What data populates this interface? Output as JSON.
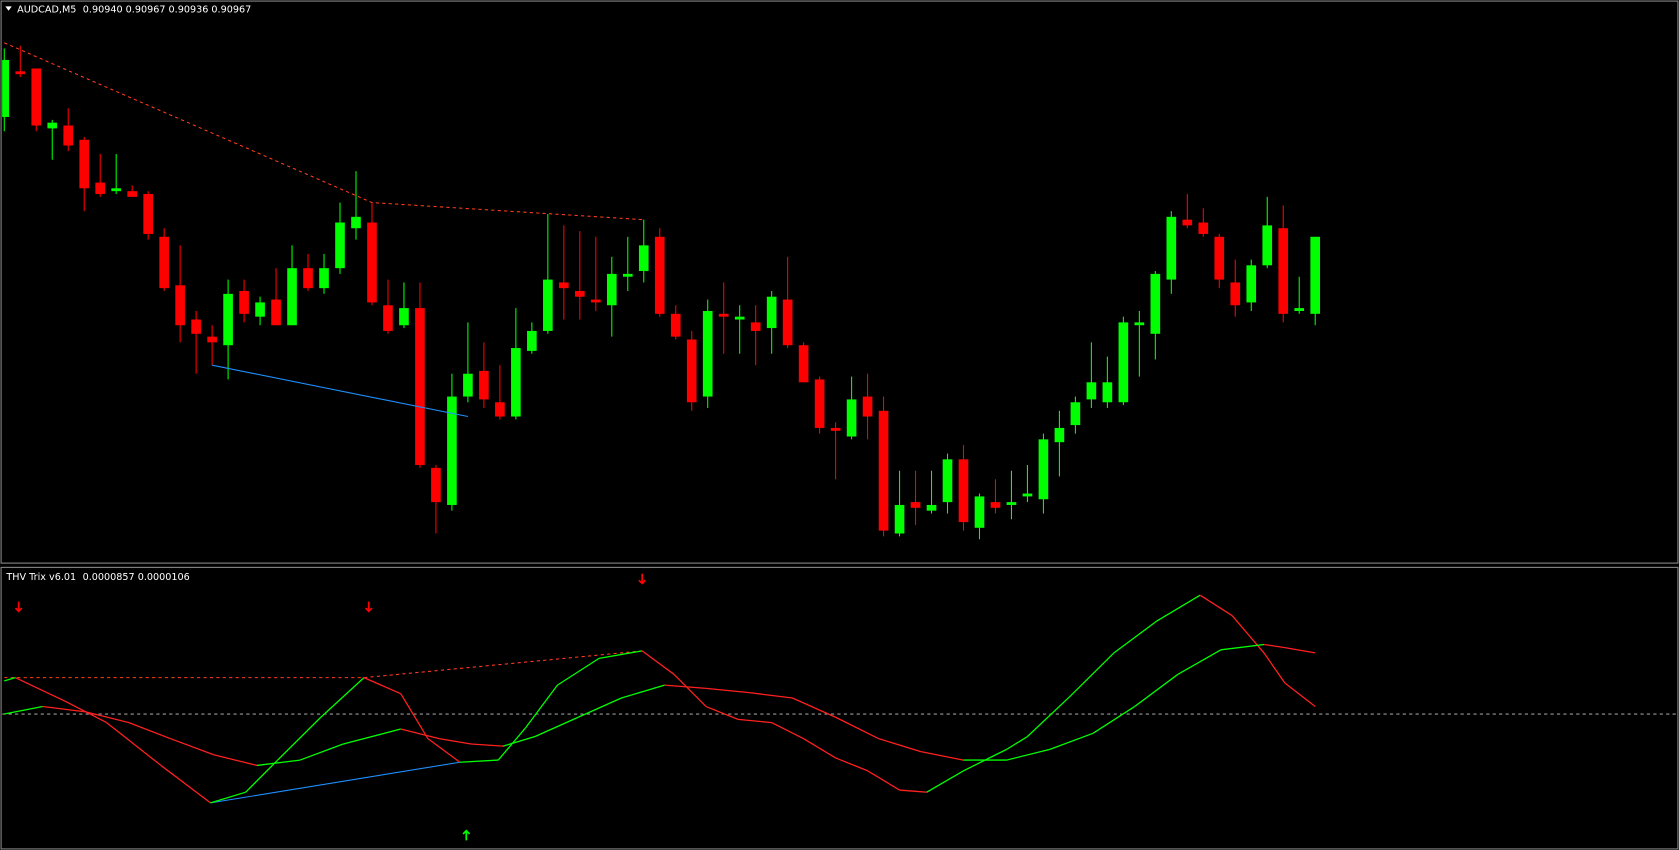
{
  "chart_data": [
    {
      "type": "candlestick",
      "title": "AUDCAD,M5",
      "subtitle": "0.90940 0.90967 0.90936 0.90967",
      "open": [
        0.91009,
        0.91025,
        0.91026,
        0.91005,
        0.91006,
        0.91001,
        0.90986,
        0.90983,
        0.90983,
        0.90982,
        0.90967,
        0.9095,
        0.90938,
        0.90932,
        0.90929,
        0.90948,
        0.90939,
        0.90945,
        0.90936,
        0.90956,
        0.90949,
        0.90956,
        0.9097,
        0.90972,
        0.90943,
        0.90936,
        0.90942,
        0.90886,
        0.90873,
        0.90911,
        0.9092,
        0.90909,
        0.90904,
        0.90927,
        0.90934,
        0.90951,
        0.90948,
        0.90945,
        0.90943,
        0.90953,
        0.90955,
        0.90967,
        0.9094,
        0.90931,
        0.90911,
        0.9094,
        0.90938,
        0.90937,
        0.90935,
        0.90945,
        0.90929,
        0.90917,
        0.909,
        0.90897,
        0.90911,
        0.90906,
        0.90863,
        0.90874,
        0.90871,
        0.90874,
        0.90889,
        0.90865,
        0.90874,
        0.90873,
        0.90876,
        0.90875,
        0.90895,
        0.90901,
        0.9091,
        0.90909,
        0.90909,
        0.90936,
        0.90933,
        0.90952,
        0.90973,
        0.90972,
        0.90967,
        0.90951,
        0.90944,
        0.90957,
        0.9097,
        0.90941,
        0.9094
      ],
      "high": [
        0.91033,
        0.91034,
        0.91026,
        0.91008,
        0.91012,
        0.91002,
        0.90996,
        0.90996,
        0.90985,
        0.90983,
        0.9097,
        0.90964,
        0.90941,
        0.90936,
        0.90952,
        0.90952,
        0.90946,
        0.90956,
        0.90964,
        0.90961,
        0.90961,
        0.90979,
        0.9099,
        0.90979,
        0.90952,
        0.90951,
        0.90951,
        0.90887,
        0.90919,
        0.90937,
        0.9093,
        0.90922,
        0.90942,
        0.90937,
        0.90975,
        0.90971,
        0.90969,
        0.90967,
        0.9096,
        0.90967,
        0.90973,
        0.9097,
        0.90943,
        0.90934,
        0.90945,
        0.90951,
        0.90943,
        0.90943,
        0.90948,
        0.9096,
        0.9093,
        0.90918,
        0.90902,
        0.90918,
        0.90919,
        0.90911,
        0.90885,
        0.90885,
        0.90885,
        0.90891,
        0.90894,
        0.90877,
        0.90882,
        0.90885,
        0.90887,
        0.90898,
        0.90906,
        0.90911,
        0.9093,
        0.90925,
        0.90939,
        0.90941,
        0.90955,
        0.90976,
        0.90982,
        0.90977,
        0.90968,
        0.90959,
        0.90959,
        0.90981,
        0.90978,
        0.90953,
        0.90967
      ],
      "low": [
        0.91004,
        0.91023,
        0.91004,
        0.90994,
        0.90997,
        0.90976,
        0.90981,
        0.90982,
        0.90981,
        0.90966,
        0.90948,
        0.9093,
        0.90919,
        0.90922,
        0.90917,
        0.90937,
        0.90936,
        0.90936,
        0.90936,
        0.90948,
        0.90947,
        0.90954,
        0.90966,
        0.90943,
        0.90933,
        0.90935,
        0.90886,
        0.90863,
        0.90871,
        0.90909,
        0.90907,
        0.90903,
        0.90903,
        0.90926,
        0.90933,
        0.90938,
        0.90938,
        0.90941,
        0.90932,
        0.90948,
        0.90951,
        0.90939,
        0.90931,
        0.90906,
        0.90907,
        0.90926,
        0.90926,
        0.90922,
        0.90926,
        0.90928,
        0.90916,
        0.90898,
        0.90882,
        0.90896,
        0.90896,
        0.90862,
        0.90862,
        0.90866,
        0.9087,
        0.9087,
        0.90864,
        0.90861,
        0.9087,
        0.90868,
        0.90874,
        0.9087,
        0.90883,
        0.90898,
        0.90907,
        0.90907,
        0.90908,
        0.90918,
        0.90924,
        0.90947,
        0.9097,
        0.90967,
        0.90949,
        0.90939,
        0.90941,
        0.90956,
        0.90937,
        0.9094,
        0.90936
      ],
      "close": [
        0.91029,
        0.91024,
        0.91006,
        0.91007,
        0.90999,
        0.90984,
        0.90982,
        0.90984,
        0.90981,
        0.90968,
        0.90949,
        0.90936,
        0.90933,
        0.9093,
        0.90947,
        0.9094,
        0.90944,
        0.90936,
        0.90956,
        0.90949,
        0.90956,
        0.90972,
        0.90974,
        0.90944,
        0.90934,
        0.90942,
        0.90887,
        0.90874,
        0.90911,
        0.90919,
        0.9091,
        0.90904,
        0.90928,
        0.90934,
        0.90952,
        0.90949,
        0.90946,
        0.90944,
        0.90954,
        0.90954,
        0.90964,
        0.9094,
        0.90932,
        0.90909,
        0.90941,
        0.90939,
        0.90939,
        0.90934,
        0.90946,
        0.90929,
        0.90916,
        0.909,
        0.90899,
        0.9091,
        0.90904,
        0.90864,
        0.90873,
        0.90872,
        0.90873,
        0.90889,
        0.90867,
        0.90876,
        0.90872,
        0.90874,
        0.90877,
        0.90896,
        0.909,
        0.90909,
        0.90916,
        0.90916,
        0.90937,
        0.90937,
        0.90954,
        0.90974,
        0.90971,
        0.90968,
        0.90952,
        0.90943,
        0.90957,
        0.90971,
        0.9094,
        0.90942,
        0.90967
      ],
      "up_color": "#00ff00",
      "down_color": "#ff0000",
      "ylim": [
        0.90853,
        0.9105
      ],
      "trendlines": [
        {
          "x": [
            0,
            23,
            40
          ],
          "y": [
            0.91035,
            0.90979,
            0.90973
          ],
          "color": "#ff3b1f",
          "dashed": true
        },
        {
          "x": [
            13,
            29
          ],
          "y": [
            0.90922,
            0.90904
          ],
          "color": "#1e90ff",
          "dashed": false
        }
      ]
    },
    {
      "type": "line",
      "title": "THV Trix v6.01",
      "subtitle": "0.0000857 0.0000106",
      "series": [
        {
          "x": [
            0,
            0.7,
            3.8,
            6.4,
            9.8,
            12.9,
            15.1,
            17.1,
            19.8,
            22.5,
            24.8,
            26.5,
            28.5,
            30.9,
            32.6,
            34.6,
            37.2,
            39.9,
            41.9,
            43.9,
            45.9,
            48.0,
            50.0,
            52.0,
            54.0,
            56.0,
            57.7,
            60.0,
            62.7,
            64.0,
            66.7,
            69.4,
            72.1,
            74.8,
            76.8,
            78.8,
            80.1,
            82
          ],
          "values": [
            4.65e-05,
            5.1e-05,
            1.8e-05,
            -1.2e-05,
            -7.2e-05,
            -0.0001245,
            -0.0001095,
            -6.45e-05,
            -4.5e-06,
            5.1e-05,
            2.85e-05,
            -3.45e-05,
            -6.75e-05,
            -6.45e-05,
            -1.95e-05,
            4.05e-05,
            7.8e-05,
            8.85e-05,
            5.55e-05,
            1.05e-05,
            -7.5e-06,
            -1.2e-05,
            -3.45e-05,
            -6.15e-05,
            -7.95e-05,
            -0.0001065,
            -0.0001095,
            -7.95e-05,
            -4.95e-05,
            -3.15e-05,
            2.55e-05,
            8.55e-05,
            0.0001305,
            0.0001665,
            0.000138,
            8.55e-05,
            4.35e-05,
            1.06e-05
          ]
        },
        {
          "x": [
            0,
            2.4,
            5.1,
            7.8,
            10.4,
            13.1,
            15.8,
            18.5,
            21.2,
            24.8,
            27.2,
            29.2,
            31.2,
            33.2,
            35.9,
            38.6,
            41.3,
            43.9,
            46.6,
            49.3,
            52.0,
            54.7,
            57.3,
            60.0,
            62.7,
            65.4,
            68.1,
            70.7,
            73.4,
            76.1,
            78.8,
            80.1,
            82
          ],
          "values": [
            0,
            1.05e-05,
            3e-06,
            -1.2e-05,
            -3.45e-05,
            -5.7e-05,
            -7.2e-05,
            -6.45e-05,
            -4.2e-05,
            -2.1e-05,
            -3.45e-05,
            -4.2e-05,
            -4.5e-05,
            -3.15e-05,
            -4.5e-06,
            2.25e-05,
            4.05e-05,
            3.6e-05,
            3e-05,
            2.25e-05,
            -4.5e-06,
            -3.45e-05,
            -5.25e-05,
            -6.45e-05,
            -6.45e-05,
            -4.95e-05,
            -2.7e-05,
            1.05e-05,
            5.55e-05,
            9e-05,
            9.75e-05,
            9.3e-05,
            8.57e-05
          ]
        }
      ],
      "up_color": "#00ff00",
      "down_color": "#ff2020",
      "ylim": [
        -0.0001875,
        0.0002055
      ],
      "levels": [
        0
      ],
      "trendlines": [
        {
          "x": [
            0,
            22.5,
            39.9
          ],
          "y": [
            5.1e-05,
            5.1e-05,
            8.85e-05
          ],
          "color": "#ff3b1f",
          "dashed": true
        },
        {
          "x": [
            12.9,
            28.5
          ],
          "y": [
            -0.0001245,
            -6.75e-05
          ],
          "color": "#1e90ff",
          "dashed": false
        }
      ],
      "arrows": [
        {
          "x": 0.9,
          "direction": "down",
          "color": "#ff0000"
        },
        {
          "x": 22.8,
          "direction": "down",
          "color": "#ff0000"
        },
        {
          "x": 39.9,
          "direction": "down",
          "color": "#ff0000"
        },
        {
          "x": 28.9,
          "direction": "up",
          "color": "#00ff00"
        }
      ]
    }
  ]
}
